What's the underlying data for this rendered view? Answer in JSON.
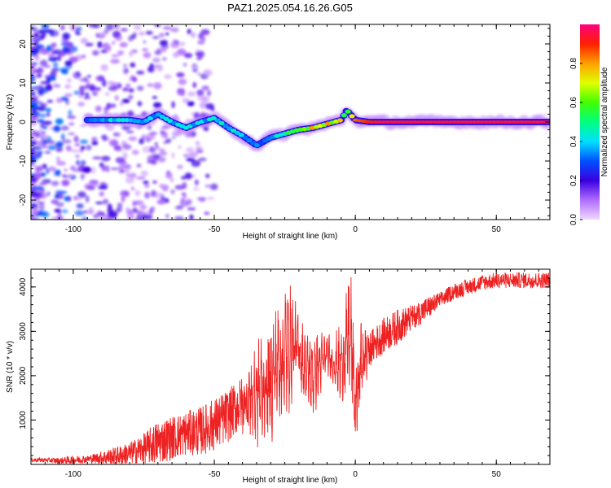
{
  "title": "PAZ1.2025.054.16.26.G05",
  "chart_data": [
    {
      "type": "heatmap",
      "panel": "top",
      "xlabel": "Height of straight line (km)",
      "ylabel": "Frequency (Hz)",
      "xlim": [
        -115,
        69
      ],
      "ylim": [
        -25,
        25
      ],
      "xticks": [
        -100,
        -50,
        0,
        50
      ],
      "yticks": [
        -20,
        -10,
        0,
        10,
        20
      ],
      "colorbar": {
        "label": "Normalized spectral amplitude",
        "range": [
          0.0,
          1.0
        ],
        "ticks": [
          "0.0",
          "0.2",
          "0.4",
          "0.6",
          "0.8"
        ],
        "colormap": [
          "#f0d8ff",
          "#b06cff",
          "#3a00e0",
          "#0050ff",
          "#00e0ff",
          "#00ff80",
          "#40ff00",
          "#e0ff00",
          "#ffa000",
          "#ff2000",
          "#ff0080"
        ]
      },
      "ridge": {
        "x": [
          -95,
          -90,
          -85,
          -80,
          -75,
          -70,
          -65,
          -60,
          -55,
          -50,
          -45,
          -40,
          -35,
          -30,
          -25,
          -20,
          -15,
          -10,
          -5,
          -3,
          0,
          5,
          10,
          20,
          30,
          40,
          50,
          60,
          69
        ],
        "frequency": [
          0.5,
          0.5,
          0.5,
          0.5,
          0.0,
          2.0,
          0.0,
          -1.5,
          0.0,
          1.0,
          -1.5,
          -3.5,
          -6.0,
          -4.0,
          -3.0,
          -2.0,
          -1.5,
          -0.5,
          0.5,
          3.0,
          0.5,
          0.0,
          0.0,
          0.0,
          0.0,
          0.0,
          0.0,
          0.0,
          0.0
        ],
        "amplitude": [
          0.35,
          0.4,
          0.45,
          0.4,
          0.35,
          0.45,
          0.45,
          0.45,
          0.4,
          0.45,
          0.45,
          0.4,
          0.35,
          0.4,
          0.5,
          0.75,
          0.8,
          0.8,
          0.8,
          0.6,
          0.85,
          0.9,
          0.95,
          0.95,
          0.95,
          0.95,
          0.95,
          0.95,
          0.95
        ]
      }
    },
    {
      "type": "line",
      "panel": "bottom",
      "xlabel": "Height of straight line (km)",
      "ylabel": "SNR (10 * v/v)",
      "xlim": [
        -115,
        69
      ],
      "ylim": [
        0,
        4400
      ],
      "xticks": [
        -100,
        -50,
        0,
        50
      ],
      "yticks": [
        1000,
        2000,
        3000,
        4000
      ],
      "color": "#ee2222",
      "series": [
        {
          "x": [
            -115,
            -110,
            -105,
            -100,
            -95,
            -90,
            -85,
            -80,
            -75,
            -70,
            -65,
            -60,
            -55,
            -50,
            -45,
            -40,
            -35,
            -30,
            -28,
            -25,
            -22,
            -20,
            -18,
            -15,
            -12,
            -10,
            -8,
            -5,
            -3,
            -2,
            -1,
            0,
            2,
            5,
            10,
            15,
            20,
            25,
            30,
            35,
            40,
            45,
            50,
            55,
            60,
            65,
            69
          ],
          "values": [
            100,
            100,
            80,
            100,
            120,
            150,
            180,
            250,
            350,
            500,
            600,
            700,
            750,
            900,
            1100,
            1400,
            1600,
            1800,
            2200,
            2500,
            2700,
            2600,
            2200,
            2000,
            2300,
            2500,
            2300,
            2200,
            2700,
            3000,
            2400,
            1200,
            2300,
            2600,
            2900,
            3100,
            3300,
            3500,
            3700,
            3900,
            4000,
            4100,
            4150,
            4150,
            4150,
            4150,
            4150
          ],
          "envelope": [
            150,
            150,
            150,
            200,
            200,
            300,
            400,
            500,
            700,
            1000,
            1100,
            1200,
            1300,
            1500,
            1700,
            2000,
            2300,
            2700,
            3000,
            3500,
            3400,
            3100,
            2700,
            2600,
            2700,
            2800,
            2600,
            2800,
            3400,
            4000,
            3200,
            1800,
            3000,
            3000,
            3300,
            3500,
            3600,
            3800,
            3900,
            4100,
            4200,
            4300,
            4350,
            4350,
            4350,
            4350,
            4350
          ]
        }
      ]
    }
  ]
}
